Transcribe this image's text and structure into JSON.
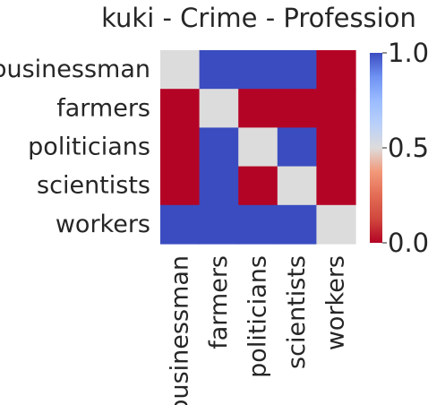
{
  "chart_data": {
    "type": "heatmap",
    "title": "kuki - Crime - Profession",
    "xlabel": "",
    "ylabel": "",
    "x_categories": [
      "businessman",
      "farmers",
      "politicians",
      "scientists",
      "workers"
    ],
    "y_categories": [
      "businessman",
      "farmers",
      "politicians",
      "scientists",
      "workers"
    ],
    "values": [
      [
        0.5,
        1,
        1,
        1,
        0
      ],
      [
        0,
        0.5,
        0,
        0,
        0
      ],
      [
        0,
        1,
        0.5,
        1,
        0
      ],
      [
        0,
        1,
        0,
        0.5,
        0
      ],
      [
        1,
        1,
        1,
        1,
        0.5
      ]
    ],
    "colormap": "coolwarm",
    "colors": {
      "low": "#b40426",
      "mid": "#dddcdc",
      "high": "#3b4cc0"
    },
    "colorbar": {
      "range": [
        0,
        1
      ],
      "ticks": [
        1.0,
        0.5,
        0.0
      ],
      "tick_labels": [
        "1.0",
        "0.5",
        "0.0"
      ]
    }
  }
}
